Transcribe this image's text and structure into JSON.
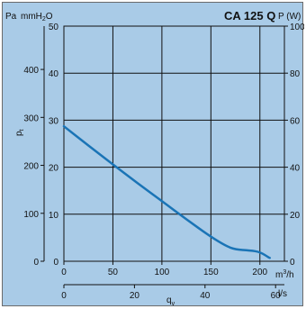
{
  "chart_data": {
    "type": "line",
    "title": "CA 125 Q",
    "units": {
      "pa": "Pa",
      "mmh2o_base": "mmH",
      "mmh2o_sub": "2",
      "mmh2o_tail": "O",
      "power": "P (W)"
    },
    "ylabel": {
      "base": "p",
      "sub": "t"
    },
    "xlabel": {
      "base": "q",
      "sub": "v"
    },
    "x_m3h": {
      "ticks": [
        0,
        50,
        100,
        150,
        200
      ],
      "unit_base": "m",
      "unit_sup": "3",
      "unit_tail": "/h",
      "range": [
        0,
        225
      ]
    },
    "x_ls": {
      "ticks": [
        0,
        20,
        40,
        60
      ],
      "unit": "l/s"
    },
    "y_mmh2o": {
      "ticks": [
        0,
        10,
        20,
        30,
        40,
        50
      ],
      "range": [
        0,
        50
      ]
    },
    "y_pa": {
      "ticks": [
        0,
        100,
        200,
        300,
        400
      ]
    },
    "y_power": {
      "ticks": [
        0,
        20,
        40,
        60,
        80,
        100
      ]
    },
    "grid": true,
    "series": [
      {
        "color": "#1a74b6",
        "x": [
          0,
          25,
          50,
          75,
          100,
          125,
          150,
          165,
          175,
          190,
          200,
          210
        ],
        "y": [
          28.7,
          24.6,
          20.6,
          16.6,
          12.8,
          8.9,
          5.2,
          3.3,
          2.5,
          2.3,
          2.0,
          0.7
        ]
      }
    ]
  }
}
